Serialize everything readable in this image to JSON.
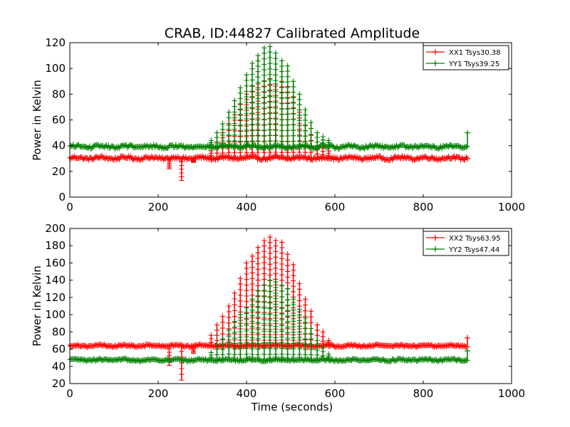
{
  "figure": {
    "title": "CRAB, ID:44827 Calibrated Amplitude"
  },
  "chart_data": [
    {
      "type": "line",
      "xlabel": "",
      "ylabel": "Power in Kelvin",
      "xlim": [
        0,
        1000
      ],
      "ylim": [
        0,
        120
      ],
      "xticks": [
        "0",
        "200",
        "400",
        "600",
        "800",
        "1000"
      ],
      "yticks": [
        "0",
        "20",
        "40",
        "60",
        "80",
        "100",
        "120"
      ],
      "xtick_values": [
        0,
        200,
        400,
        600,
        800,
        1000
      ],
      "ytick_values": [
        0,
        20,
        40,
        60,
        80,
        100,
        120
      ],
      "legend_position": "top-right",
      "grid": false,
      "marker": "+",
      "series": [
        {
          "name": "XX1 Tsys30.38",
          "color": "#ff0000",
          "baseline": 30.38,
          "baseline_range": [
            0,
            900
          ],
          "transit": {
            "x": [
              320,
              333,
              346,
              360,
              373,
              386,
              400,
              413,
              426,
              440,
              453,
              466,
              480,
              493,
              506,
              520,
              533,
              546,
              560,
              573,
              586
            ],
            "peak": [
              36,
              42,
              50,
              56,
              64,
              72,
              80,
              86,
              88,
              90,
              92,
              88,
              90,
              86,
              78,
              66,
              56,
              48,
              40,
              38,
              36
            ]
          },
          "dips": [
            {
              "x": 225,
              "min": 22
            },
            {
              "x": 253,
              "min": 13
            },
            {
              "x": 280,
              "min": 27
            }
          ],
          "end_spike": {
            "x": 900,
            "value": 30
          }
        },
        {
          "name": "YY1 Tsys39.25",
          "color": "#008000",
          "baseline": 39.25,
          "baseline_range": [
            0,
            900
          ],
          "transit": {
            "x": [
              320,
              333,
              346,
              360,
              373,
              386,
              400,
              413,
              426,
              440,
              453,
              466,
              480,
              493,
              506,
              520,
              533,
              546,
              560,
              573,
              586
            ],
            "peak": [
              44,
              50,
              57,
              66,
              75,
              85,
              95,
              104,
              110,
              116,
              117,
              112,
              106,
              102,
              90,
              80,
              68,
              58,
              50,
              47,
              44
            ]
          },
          "dips": [],
          "end_spike": {
            "x": 900,
            "value": 50
          }
        }
      ]
    },
    {
      "type": "line",
      "xlabel": "Time (seconds)",
      "ylabel": "Power in Kelvin",
      "xlim": [
        0,
        1000
      ],
      "ylim": [
        20,
        200
      ],
      "xticks": [
        "0",
        "200",
        "400",
        "600",
        "800",
        "1000"
      ],
      "yticks": [
        "20",
        "40",
        "60",
        "80",
        "100",
        "120",
        "140",
        "160",
        "180",
        "200"
      ],
      "xtick_values": [
        0,
        200,
        400,
        600,
        800,
        1000
      ],
      "ytick_values": [
        20,
        40,
        60,
        80,
        100,
        120,
        140,
        160,
        180,
        200
      ],
      "legend_position": "top-right",
      "grid": false,
      "marker": "+",
      "series": [
        {
          "name": "XX2 Tsys63.95",
          "color": "#ff0000",
          "baseline": 63.95,
          "baseline_range": [
            0,
            900
          ],
          "transit": {
            "x": [
              320,
              333,
              346,
              360,
              373,
              386,
              400,
              413,
              426,
              440,
              453,
              466,
              480,
              493,
              506,
              520,
              533,
              546,
              560,
              573,
              586
            ],
            "peak": [
              76,
              88,
              98,
              110,
              125,
              142,
              160,
              168,
              178,
              186,
              190,
              186,
              184,
              170,
              158,
              136,
              118,
              104,
              88,
              80,
              70
            ]
          },
          "dips": [
            {
              "x": 225,
              "min": 41
            },
            {
              "x": 253,
              "min": 24
            },
            {
              "x": 280,
              "min": 55
            }
          ],
          "end_spike": {
            "x": 900,
            "value": 73
          }
        },
        {
          "name": "YY2 Tsys47.44",
          "color": "#008000",
          "baseline": 47.44,
          "baseline_range": [
            0,
            900
          ],
          "transit": {
            "x": [
              320,
              333,
              346,
              360,
              373,
              386,
              400,
              413,
              426,
              440,
              453,
              466,
              480,
              493,
              506,
              520,
              533,
              546,
              560,
              573,
              586
            ],
            "peak": [
              56,
              66,
              72,
              82,
              92,
              100,
              108,
              118,
              128,
              134,
              140,
              138,
              134,
              130,
              118,
              106,
              96,
              84,
              70,
              62,
              54
            ]
          },
          "dips": [],
          "end_spike": {
            "x": 900,
            "value": 58
          }
        }
      ]
    }
  ]
}
